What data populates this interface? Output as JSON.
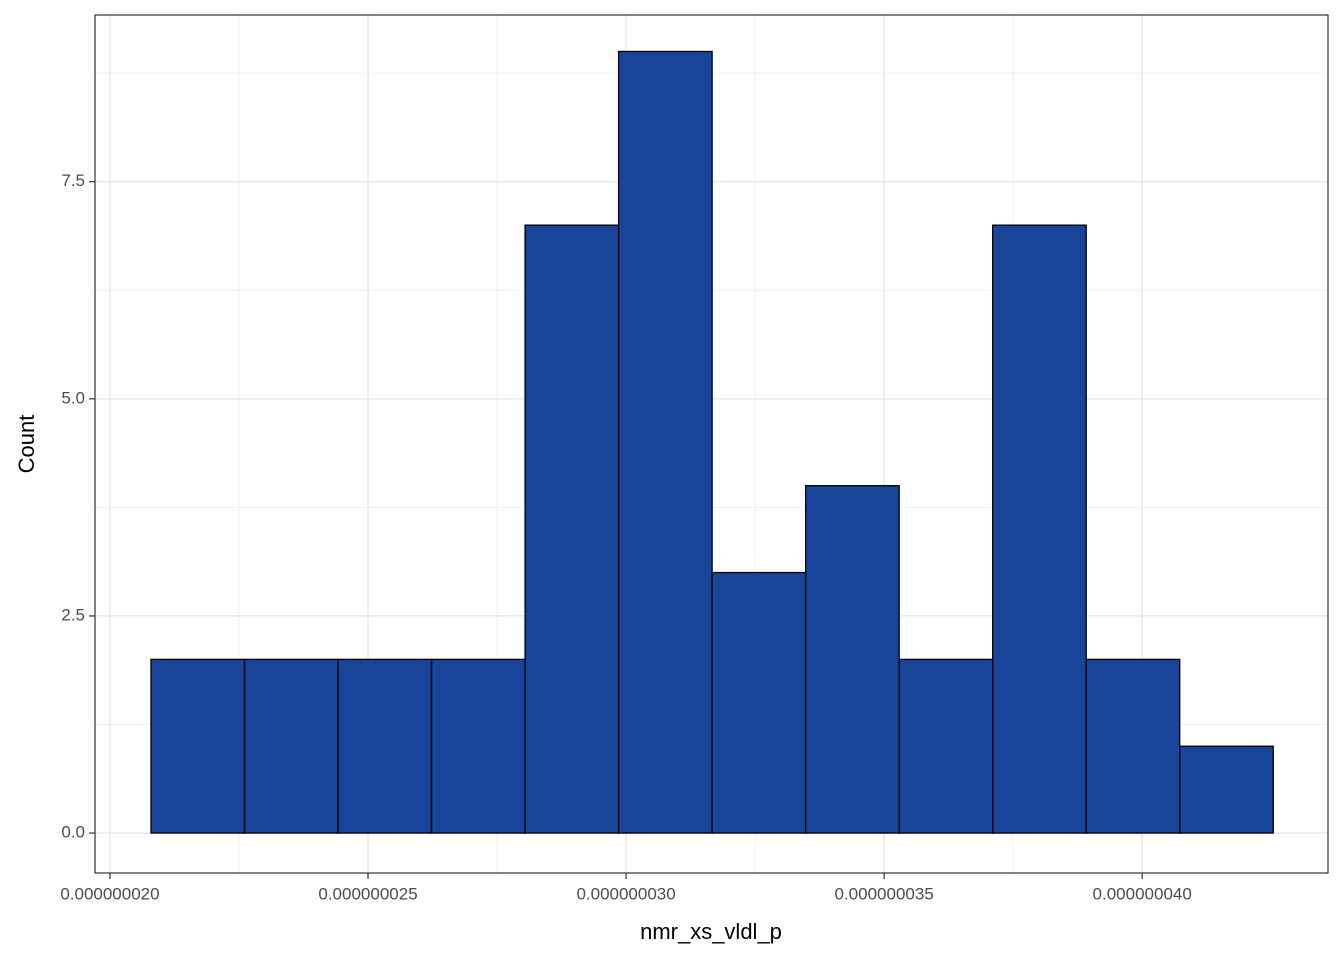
{
  "chart_data": {
    "type": "histogram",
    "x_label": "nmr_xs_vldl_p",
    "y_label": "Count",
    "bins": [
      2.0795e-08,
      2.2607e-08,
      2.4419e-08,
      2.6231e-08,
      2.8043e-08,
      2.9855e-08,
      3.1667e-08,
      3.3479e-08,
      3.5291e-08,
      3.7103e-08,
      3.8915e-08,
      4.0727e-08,
      4.2539e-08
    ],
    "values": [
      2,
      2,
      2,
      2,
      7,
      9,
      3,
      4,
      2,
      7,
      2,
      1
    ],
    "color": "#18449a",
    "edge_color": "#000000",
    "xlim": [
      1.971e-08,
      4.36e-08
    ],
    "ylim": [
      -0.46,
      9.42
    ],
    "xticks": [
      {
        "value": 2e-08,
        "label": "0.000000020"
      },
      {
        "value": 2.5e-08,
        "label": "0.000000025"
      },
      {
        "value": 3e-08,
        "label": "0.000000030"
      },
      {
        "value": 3.5e-08,
        "label": "0.000000035"
      },
      {
        "value": 4e-08,
        "label": "0.000000040"
      }
    ],
    "yticks": [
      {
        "value": 0,
        "label": "0.0"
      },
      2.5,
      {
        "value": 5,
        "label": "5.0"
      },
      7.5
    ],
    "grid": true
  }
}
